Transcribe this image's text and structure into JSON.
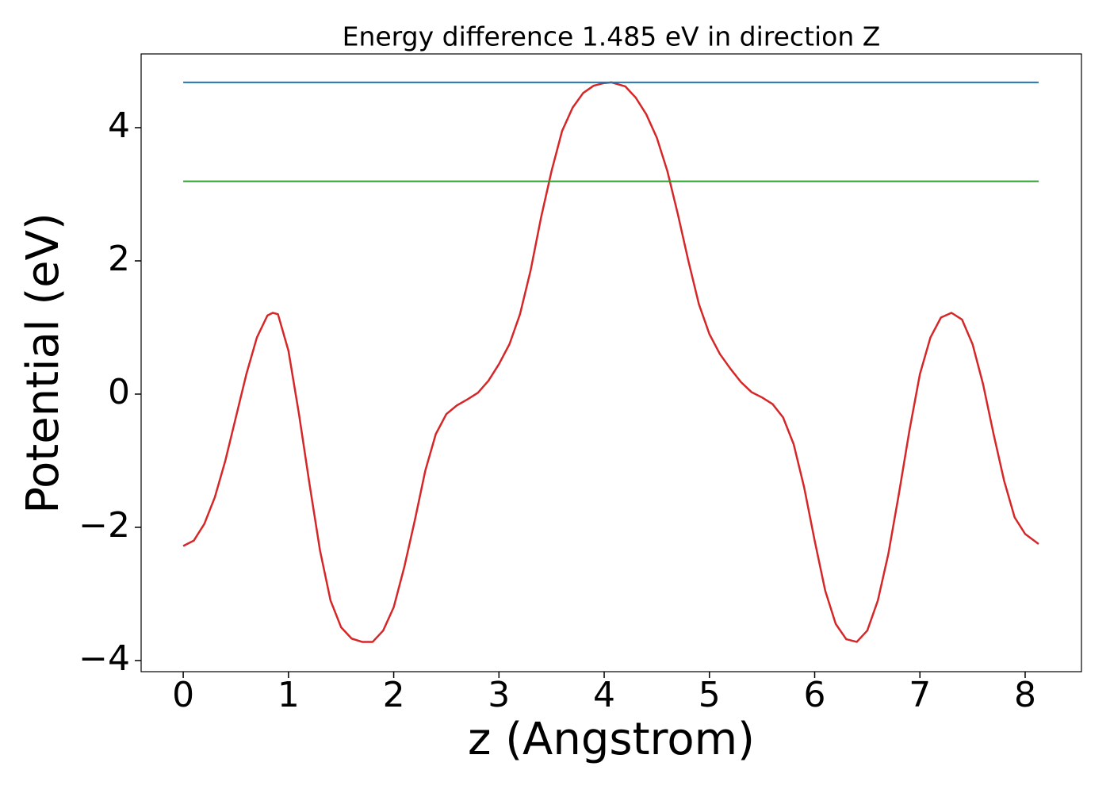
{
  "chart_data": {
    "type": "line",
    "title": "Energy difference 1.485 eV in direction Z",
    "xlabel": "z (Angstrom)",
    "ylabel": "Potential (eV)",
    "xlim": [
      -0.4,
      8.535
    ],
    "ylim": [
      -4.167,
      5.107
    ],
    "xticks": [
      0,
      1,
      2,
      3,
      4,
      5,
      6,
      7,
      8
    ],
    "yticks": [
      {
        "value": -4,
        "label": "−4"
      },
      {
        "value": -2,
        "label": "−2"
      },
      0,
      2,
      4
    ],
    "grid": false,
    "series": [
      {
        "color": "#d62728",
        "x": [
          0,
          0.1,
          0.2,
          0.3,
          0.4,
          0.5,
          0.6,
          0.7,
          0.8,
          0.85,
          0.9,
          1.0,
          1.1,
          1.2,
          1.3,
          1.4,
          1.5,
          1.6,
          1.7,
          1.8,
          1.9,
          2.0,
          2.1,
          2.2,
          2.3,
          2.4,
          2.5,
          2.6,
          2.7,
          2.8,
          2.9,
          3.0,
          3.1,
          3.2,
          3.3,
          3.4,
          3.5,
          3.6,
          3.7,
          3.8,
          3.9,
          4.0,
          4.07,
          4.2,
          4.3,
          4.4,
          4.5,
          4.6,
          4.7,
          4.8,
          4.9,
          5.0,
          5.1,
          5.2,
          5.3,
          5.4,
          5.5,
          5.6,
          5.7,
          5.8,
          5.9,
          6.0,
          6.1,
          6.2,
          6.3,
          6.4,
          6.5,
          6.6,
          6.7,
          6.8,
          6.9,
          7.0,
          7.1,
          7.2,
          7.3,
          7.4,
          7.5,
          7.6,
          7.7,
          7.8,
          7.9,
          8.0,
          8.128
        ],
        "values": [
          -2.28,
          -2.2,
          -1.95,
          -1.55,
          -1.0,
          -0.35,
          0.3,
          0.85,
          1.18,
          1.22,
          1.2,
          0.65,
          -0.3,
          -1.35,
          -2.35,
          -3.1,
          -3.5,
          -3.67,
          -3.72,
          -3.72,
          -3.55,
          -3.2,
          -2.6,
          -1.9,
          -1.15,
          -0.6,
          -0.3,
          -0.17,
          -0.08,
          0.02,
          0.2,
          0.45,
          0.75,
          1.2,
          1.85,
          2.65,
          3.35,
          3.95,
          4.3,
          4.52,
          4.63,
          4.67,
          4.68,
          4.62,
          4.45,
          4.2,
          3.85,
          3.35,
          2.7,
          2.0,
          1.35,
          0.9,
          0.6,
          0.38,
          0.18,
          0.03,
          -0.05,
          -0.15,
          -0.35,
          -0.75,
          -1.4,
          -2.2,
          -2.95,
          -3.45,
          -3.68,
          -3.72,
          -3.55,
          -3.1,
          -2.4,
          -1.5,
          -0.55,
          0.3,
          0.85,
          1.15,
          1.22,
          1.12,
          0.75,
          0.15,
          -0.6,
          -1.3,
          -1.85,
          -2.1,
          -2.25
        ]
      },
      {
        "color": "#1f77b4",
        "x": [
          0,
          8.128
        ],
        "values": [
          4.68,
          4.68
        ]
      },
      {
        "color": "#2ca02c",
        "x": [
          0,
          8.128
        ],
        "values": [
          3.195,
          3.195
        ]
      }
    ]
  }
}
